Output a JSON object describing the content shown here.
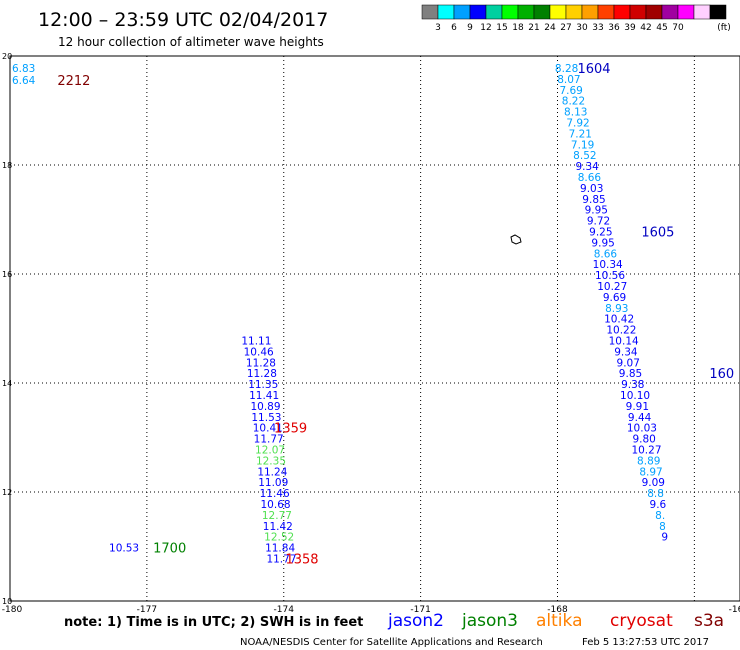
{
  "header": {
    "title": "12:00 – 23:59 UTC 02/04/2017",
    "subtitle": "12 hour collection of altimeter wave heights"
  },
  "colorbar": {
    "colors": [
      "#808080",
      "#00ffff",
      "#00a0ff",
      "#0000ff",
      "#00d0a0",
      "#00ff00",
      "#00b000",
      "#008000",
      "#ffff00",
      "#ffd000",
      "#ffa000",
      "#ff4000",
      "#ff0000",
      "#d00000",
      "#a00000",
      "#a000a0",
      "#ff00ff",
      "#ffd0ff",
      "#000000"
    ],
    "labels": [
      "3",
      "6",
      "9",
      "12",
      "15",
      "18",
      "21",
      "24",
      "27",
      "30",
      "33",
      "36",
      "39",
      "42",
      "45",
      "70"
    ],
    "unit": "(ft)"
  },
  "chart_data": {
    "type": "scatter",
    "xlim": [
      -180,
      -164
    ],
    "ylim": [
      10,
      20
    ],
    "x_ticks": [
      "-180",
      "-177",
      "-174",
      "-171",
      "-168",
      "-16"
    ],
    "y_ticks": [
      "10",
      "12",
      "14",
      "16",
      "18",
      "20"
    ],
    "grid": true,
    "points": [
      {
        "x": -179.7,
        "y": 19.78,
        "label": "6.83",
        "color": "#00a0ff"
      },
      {
        "x": -179.7,
        "y": 19.56,
        "label": "6.64",
        "color": "#00a0ff"
      },
      {
        "x": -167.8,
        "y": 19.78,
        "label": "8.28",
        "color": "#00a0ff"
      },
      {
        "x": -167.75,
        "y": 19.58,
        "label": "8.07",
        "color": "#00a0ff"
      },
      {
        "x": -167.7,
        "y": 19.38,
        "label": "7.69",
        "color": "#00a0ff"
      },
      {
        "x": -167.65,
        "y": 19.18,
        "label": "8.22",
        "color": "#00a0ff"
      },
      {
        "x": -167.6,
        "y": 18.98,
        "label": "8.13",
        "color": "#00a0ff"
      },
      {
        "x": -167.55,
        "y": 18.78,
        "label": "7.92",
        "color": "#00a0ff"
      },
      {
        "x": -167.5,
        "y": 18.58,
        "label": "7.21",
        "color": "#00a0ff"
      },
      {
        "x": -167.45,
        "y": 18.38,
        "label": "7.19",
        "color": "#00a0ff"
      },
      {
        "x": -167.4,
        "y": 18.18,
        "label": "8.52",
        "color": "#00a0ff"
      },
      {
        "x": -167.35,
        "y": 17.98,
        "label": "9.34",
        "color": "#0000ff"
      },
      {
        "x": -167.3,
        "y": 17.78,
        "label": "8.66",
        "color": "#00a0ff"
      },
      {
        "x": -167.25,
        "y": 17.58,
        "label": "9.03",
        "color": "#0000ff"
      },
      {
        "x": -167.2,
        "y": 17.38,
        "label": "9.85",
        "color": "#0000ff"
      },
      {
        "x": -167.15,
        "y": 17.18,
        "label": "9.95",
        "color": "#0000ff"
      },
      {
        "x": -167.1,
        "y": 16.98,
        "label": "9.72",
        "color": "#0000ff"
      },
      {
        "x": -167.05,
        "y": 16.78,
        "label": "9.25",
        "color": "#0000ff"
      },
      {
        "x": -167.0,
        "y": 16.58,
        "label": "9.95",
        "color": "#0000ff"
      },
      {
        "x": -166.95,
        "y": 16.38,
        "label": "8.66",
        "color": "#00a0ff"
      },
      {
        "x": -166.9,
        "y": 16.18,
        "label": "10.34",
        "color": "#0000ff"
      },
      {
        "x": -166.85,
        "y": 15.98,
        "label": "10.56",
        "color": "#0000ff"
      },
      {
        "x": -166.8,
        "y": 15.78,
        "label": "10.27",
        "color": "#0000ff"
      },
      {
        "x": -166.75,
        "y": 15.58,
        "label": "9.69",
        "color": "#0000ff"
      },
      {
        "x": -166.7,
        "y": 15.38,
        "label": "8.93",
        "color": "#00a0ff"
      },
      {
        "x": -166.65,
        "y": 15.18,
        "label": "10.42",
        "color": "#0000ff"
      },
      {
        "x": -166.6,
        "y": 14.98,
        "label": "10.22",
        "color": "#0000ff"
      },
      {
        "x": -166.55,
        "y": 14.78,
        "label": "10.14",
        "color": "#0000ff"
      },
      {
        "x": -166.5,
        "y": 14.58,
        "label": "9.34",
        "color": "#0000ff"
      },
      {
        "x": -166.45,
        "y": 14.38,
        "label": "9.07",
        "color": "#0000ff"
      },
      {
        "x": -166.4,
        "y": 14.18,
        "label": "9.85",
        "color": "#0000ff"
      },
      {
        "x": -166.35,
        "y": 13.98,
        "label": "9.38",
        "color": "#0000ff"
      },
      {
        "x": -166.3,
        "y": 13.78,
        "label": "10.10",
        "color": "#0000ff"
      },
      {
        "x": -166.25,
        "y": 13.58,
        "label": "9.91",
        "color": "#0000ff"
      },
      {
        "x": -166.2,
        "y": 13.38,
        "label": "9.44",
        "color": "#0000ff"
      },
      {
        "x": -166.15,
        "y": 13.18,
        "label": "10.03",
        "color": "#0000ff"
      },
      {
        "x": -166.1,
        "y": 12.98,
        "label": "9.80",
        "color": "#0000ff"
      },
      {
        "x": -166.05,
        "y": 12.78,
        "label": "10.27",
        "color": "#0000ff"
      },
      {
        "x": -166.0,
        "y": 12.58,
        "label": "8.89",
        "color": "#00a0ff"
      },
      {
        "x": -165.95,
        "y": 12.38,
        "label": "8.97",
        "color": "#00a0ff"
      },
      {
        "x": -165.9,
        "y": 12.18,
        "label": "9.09",
        "color": "#0000ff"
      },
      {
        "x": -165.85,
        "y": 11.98,
        "label": "8.8",
        "color": "#00a0ff"
      },
      {
        "x": -165.8,
        "y": 11.78,
        "label": "9.6",
        "color": "#0000ff"
      },
      {
        "x": -165.75,
        "y": 11.58,
        "label": "8.",
        "color": "#00a0ff"
      },
      {
        "x": -165.7,
        "y": 11.38,
        "label": "8",
        "color": "#00a0ff"
      },
      {
        "x": -165.65,
        "y": 11.18,
        "label": "9",
        "color": "#0000ff"
      },
      {
        "x": -174.6,
        "y": 14.78,
        "label": "11.11",
        "color": "#0000ff"
      },
      {
        "x": -174.55,
        "y": 14.58,
        "label": "10.46",
        "color": "#0000ff"
      },
      {
        "x": -174.5,
        "y": 14.38,
        "label": "11.28",
        "color": "#0000ff"
      },
      {
        "x": -174.48,
        "y": 14.18,
        "label": "11.28",
        "color": "#0000ff"
      },
      {
        "x": -174.45,
        "y": 13.98,
        "label": "11.35",
        "color": "#0000ff"
      },
      {
        "x": -174.43,
        "y": 13.78,
        "label": "11.41",
        "color": "#0000ff"
      },
      {
        "x": -174.4,
        "y": 13.58,
        "label": "10.89",
        "color": "#0000ff"
      },
      {
        "x": -174.38,
        "y": 13.38,
        "label": "11.53",
        "color": "#0000ff"
      },
      {
        "x": -174.35,
        "y": 13.18,
        "label": "10.41",
        "color": "#0000ff"
      },
      {
        "x": -174.33,
        "y": 12.98,
        "label": "11.77",
        "color": "#0000ff"
      },
      {
        "x": -174.3,
        "y": 12.78,
        "label": "12.07",
        "color": "#50e050"
      },
      {
        "x": -174.28,
        "y": 12.58,
        "label": "12.35",
        "color": "#50e050"
      },
      {
        "x": -174.25,
        "y": 12.38,
        "label": "11.24",
        "color": "#0000ff"
      },
      {
        "x": -174.23,
        "y": 12.18,
        "label": "11.09",
        "color": "#0000ff"
      },
      {
        "x": -174.2,
        "y": 11.98,
        "label": "11.46",
        "color": "#0000ff"
      },
      {
        "x": -174.18,
        "y": 11.78,
        "label": "10.68",
        "color": "#0000ff"
      },
      {
        "x": -174.15,
        "y": 11.58,
        "label": "12.77",
        "color": "#50e050"
      },
      {
        "x": -174.13,
        "y": 11.38,
        "label": "11.42",
        "color": "#0000ff"
      },
      {
        "x": -174.1,
        "y": 11.18,
        "label": "12.52",
        "color": "#50e050"
      },
      {
        "x": -174.08,
        "y": 10.98,
        "label": "11.84",
        "color": "#0000ff"
      },
      {
        "x": -174.05,
        "y": 10.78,
        "label": "11.77",
        "color": "#0000ff"
      },
      {
        "x": -177.5,
        "y": 10.98,
        "label": "10.53",
        "color": "#0000ff"
      }
    ],
    "pass_labels": [
      {
        "x": -178.6,
        "y": 19.56,
        "label": "2212",
        "color": "#800000"
      },
      {
        "x": -167.2,
        "y": 19.78,
        "label": "1604",
        "color": "#0000c0"
      },
      {
        "x": -165.8,
        "y": 16.78,
        "label": "1605",
        "color": "#0000c0"
      },
      {
        "x": -164.4,
        "y": 14.18,
        "label": "160",
        "color": "#0000c0"
      },
      {
        "x": -173.85,
        "y": 13.18,
        "label": "1359",
        "color": "#e00000"
      },
      {
        "x": -176.5,
        "y": 10.98,
        "label": "1700",
        "color": "#008000"
      },
      {
        "x": -173.6,
        "y": 10.78,
        "label": "1358",
        "color": "#e00000"
      }
    ]
  },
  "footer": {
    "note": "note: 1) Time is in UTC; 2) SWH is in feet",
    "legend": [
      {
        "name": "jason2",
        "color": "#0000ff"
      },
      {
        "name": "jason3",
        "color": "#008000"
      },
      {
        "name": "altika",
        "color": "#ff8000"
      },
      {
        "name": "cryosat",
        "color": "#e00000"
      },
      {
        "name": "s3a",
        "color": "#800000"
      }
    ],
    "credit": "NOAA/NESDIS Center for Satellite Applications and Research",
    "timestamp": "Feb  5 13:27:53 UTC 2017"
  }
}
